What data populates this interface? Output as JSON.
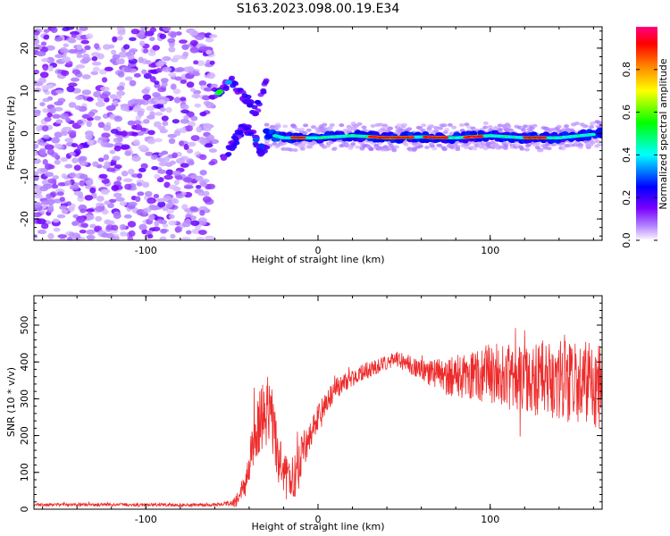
{
  "title": "S163.2023.098.00.19.E34",
  "colors": {
    "snr_line": "#ee2b2b",
    "axes": "#000000",
    "background": "#ffffff"
  },
  "chart_data": [
    {
      "type": "heatmap",
      "xlabel": "Height of straight line (km)",
      "ylabel": "Frequency (Hz)",
      "xlim": [
        -165,
        165
      ],
      "ylim": [
        -25,
        25
      ],
      "xticks": [
        "-100",
        "0",
        "100"
      ],
      "yticks": [
        "-20",
        "-10",
        "0",
        "10",
        "20"
      ],
      "colorbar": {
        "label": "Normalized spectral amplitude",
        "ticks": [
          "0.0",
          "0.2",
          "0.4",
          "0.6",
          "0.8"
        ],
        "range": [
          0,
          1
        ],
        "colormap": [
          "#ffffff",
          "#e8d5ff",
          "#8000ff",
          "#0000ff",
          "#00ffff",
          "#00ff00",
          "#ffff00",
          "#ff8000",
          "#ff0000"
        ]
      },
      "features": {
        "noise_region_x": [
          -165,
          -60
        ],
        "main_trace": [
          [
            -30,
            0.0
          ],
          [
            -20,
            -1.0
          ],
          [
            0,
            -1.0
          ],
          [
            20,
            -0.5
          ],
          [
            40,
            -1.0
          ],
          [
            60,
            -0.8
          ],
          [
            80,
            -1.0
          ],
          [
            100,
            -0.5
          ],
          [
            120,
            -1.0
          ],
          [
            140,
            -1.0
          ],
          [
            165,
            0.0
          ]
        ],
        "high_amplitude_x": [
          [
            -15,
            -8
          ],
          [
            30,
            55
          ],
          [
            62,
            75
          ],
          [
            85,
            95
          ],
          [
            120,
            132
          ]
        ],
        "upper_branch": [
          [
            -62,
            8.5
          ],
          [
            -55,
            11
          ],
          [
            -50,
            12
          ],
          [
            -45,
            10
          ],
          [
            -36,
            5
          ],
          [
            -30,
            13
          ]
        ],
        "lower_branch": [
          [
            -56,
            -7
          ],
          [
            -50,
            -3
          ],
          [
            -43,
            2
          ],
          [
            -38,
            0
          ],
          [
            -33,
            -4
          ],
          [
            -29,
            -3
          ]
        ]
      }
    },
    {
      "type": "line",
      "xlabel": "Height of straight line (km)",
      "ylabel": "SNR (10 * v/v)",
      "xlim": [
        -165,
        165
      ],
      "ylim": [
        0,
        580
      ],
      "xticks": [
        "-100",
        "0",
        "100"
      ],
      "yticks": [
        "0",
        "100",
        "200",
        "300",
        "400",
        "500"
      ],
      "envelope": [
        [
          -165,
          12
        ],
        [
          -120,
          12
        ],
        [
          -80,
          12
        ],
        [
          -60,
          12
        ],
        [
          -50,
          15
        ],
        [
          -45,
          30
        ],
        [
          -42,
          70
        ],
        [
          -38,
          160
        ],
        [
          -34,
          240
        ],
        [
          -30,
          280
        ],
        [
          -27,
          240
        ],
        [
          -24,
          160
        ],
        [
          -20,
          90
        ],
        [
          -16,
          70
        ],
        [
          -12,
          100
        ],
        [
          -8,
          170
        ],
        [
          -4,
          210
        ],
        [
          0,
          250
        ],
        [
          5,
          290
        ],
        [
          10,
          325
        ],
        [
          15,
          345
        ],
        [
          20,
          360
        ],
        [
          25,
          370
        ],
        [
          30,
          380
        ],
        [
          35,
          390
        ],
        [
          40,
          395
        ],
        [
          45,
          410
        ],
        [
          50,
          400
        ],
        [
          55,
          390
        ],
        [
          60,
          380
        ],
        [
          65,
          370
        ],
        [
          70,
          365
        ],
        [
          75,
          360
        ],
        [
          80,
          360
        ],
        [
          90,
          365
        ],
        [
          100,
          370
        ],
        [
          110,
          360
        ],
        [
          120,
          350
        ],
        [
          130,
          355
        ],
        [
          140,
          350
        ],
        [
          150,
          345
        ],
        [
          160,
          340
        ],
        [
          165,
          330
        ]
      ],
      "spread": [
        [
          -165,
          4
        ],
        [
          -60,
          5
        ],
        [
          -50,
          8
        ],
        [
          -40,
          50
        ],
        [
          -30,
          110
        ],
        [
          -24,
          80
        ],
        [
          -20,
          60
        ],
        [
          -12,
          70
        ],
        [
          -5,
          40
        ],
        [
          5,
          30
        ],
        [
          20,
          25
        ],
        [
          40,
          20
        ],
        [
          60,
          28
        ],
        [
          80,
          60
        ],
        [
          100,
          80
        ],
        [
          120,
          100
        ],
        [
          140,
          110
        ],
        [
          165,
          120
        ]
      ]
    }
  ]
}
